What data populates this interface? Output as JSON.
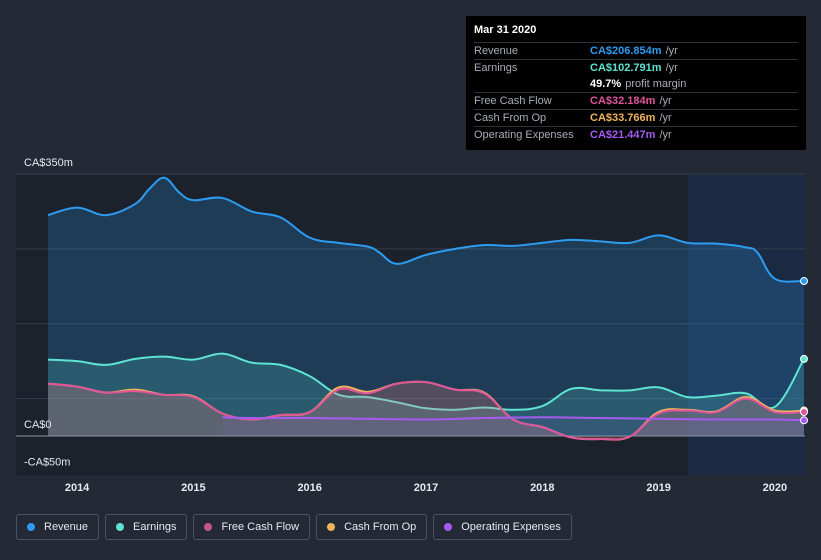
{
  "tooltip": {
    "date": "Mar 31 2020",
    "rows": [
      {
        "label": "Revenue",
        "value": "CA$206.854m",
        "unit": "/yr",
        "color": "#2d9cf0"
      },
      {
        "label": "Earnings",
        "value": "CA$102.791m",
        "unit": "/yr",
        "color": "#5fe3d2"
      },
      {
        "label": "",
        "value": "49.7%",
        "unit": "profit margin",
        "color": "#ffffff"
      },
      {
        "label": "Free Cash Flow",
        "value": "CA$32.184m",
        "unit": "/yr",
        "color": "#e0559a"
      },
      {
        "label": "Cash From Op",
        "value": "CA$33.766m",
        "unit": "/yr",
        "color": "#f0b45c"
      },
      {
        "label": "Operating Expenses",
        "value": "CA$21.447m",
        "unit": "/yr",
        "color": "#a55bef"
      }
    ]
  },
  "chart_data": {
    "type": "area",
    "y_axis_labels": [
      "CA$350m",
      "CA$0",
      "-CA$50m"
    ],
    "ylim": [
      -50,
      350
    ],
    "xlim": [
      2013.75,
      2020.25
    ],
    "x_ticks": [
      "2014",
      "2015",
      "2016",
      "2017",
      "2018",
      "2019",
      "2020"
    ],
    "forecast_start": 2019.25,
    "series": [
      {
        "name": "Revenue",
        "color": "#2d9cf0",
        "fill_from": null,
        "x": [
          2013.75,
          2014.0,
          2014.25,
          2014.5,
          2014.62,
          2014.75,
          2014.88,
          2015.0,
          2015.25,
          2015.5,
          2015.75,
          2016.0,
          2016.25,
          2016.5,
          2016.6,
          2016.75,
          2017.0,
          2017.25,
          2017.5,
          2017.75,
          2018.0,
          2018.25,
          2018.5,
          2018.75,
          2019.0,
          2019.25,
          2019.5,
          2019.75,
          2019.85,
          2020.0,
          2020.25
        ],
        "y": [
          295,
          305,
          295,
          310,
          330,
          345,
          325,
          315,
          318,
          300,
          292,
          265,
          258,
          253,
          245,
          230,
          242,
          250,
          255,
          254,
          258,
          262,
          260,
          258,
          268,
          258,
          257,
          252,
          245,
          210,
          207
        ]
      },
      {
        "name": "Earnings",
        "color": "#5fe3d2",
        "fill_from": null,
        "x": [
          2013.75,
          2014.0,
          2014.25,
          2014.5,
          2014.75,
          2015.0,
          2015.25,
          2015.5,
          2015.75,
          2016.0,
          2016.25,
          2016.5,
          2016.75,
          2017.0,
          2017.25,
          2017.5,
          2017.75,
          2018.0,
          2018.25,
          2018.5,
          2018.75,
          2019.0,
          2019.25,
          2019.5,
          2019.75,
          2020.0,
          2020.25
        ],
        "y": [
          102,
          100,
          95,
          103,
          106,
          102,
          110,
          98,
          95,
          80,
          55,
          52,
          45,
          37,
          35,
          38,
          35,
          40,
          63,
          61,
          61,
          65,
          52,
          54,
          57,
          39,
          103
        ]
      },
      {
        "name": "Free Cash Flow",
        "color": "#e0559a",
        "fill_from": null,
        "x": [
          2013.75,
          2014.0,
          2014.25,
          2014.5,
          2014.75,
          2015.0,
          2015.25,
          2015.5,
          2015.75,
          2016.0,
          2016.25,
          2016.5,
          2016.75,
          2017.0,
          2017.25,
          2017.5,
          2017.75,
          2018.0,
          2018.25,
          2018.5,
          2018.75,
          2019.0,
          2019.25,
          2019.5,
          2019.75,
          2020.0,
          2020.25
        ],
        "y": [
          70,
          66,
          58,
          60,
          55,
          52,
          30,
          22,
          28,
          32,
          62,
          57,
          70,
          72,
          62,
          57,
          22,
          12,
          -2,
          -4,
          -1,
          30,
          34,
          32,
          50,
          32,
          32
        ]
      },
      {
        "name": "Cash From Op",
        "color": "#f0b45c",
        "fill_from": null,
        "x": [
          2013.75,
          2014.0,
          2014.25,
          2014.5,
          2014.75,
          2015.0,
          2015.25,
          2015.5,
          2015.75,
          2016.0,
          2016.25,
          2016.5,
          2016.75,
          2017.0,
          2017.25,
          2017.5,
          2017.75,
          2018.0,
          2018.25,
          2018.5,
          2018.75,
          2019.0,
          2019.25,
          2019.5,
          2019.75,
          2020.0,
          2020.25
        ],
        "y": [
          70,
          66,
          58,
          62,
          55,
          53,
          30,
          22,
          28,
          32,
          65,
          59,
          70,
          72,
          62,
          58,
          22,
          12,
          -2,
          -4,
          -1,
          32,
          35,
          33,
          52,
          34,
          34
        ]
      },
      {
        "name": "Operating Expenses",
        "color": "#a55bef",
        "fill_from": null,
        "x": [
          2015.25,
          2015.5,
          2015.75,
          2016.0,
          2016.5,
          2017.0,
          2017.5,
          2018.0,
          2018.5,
          2019.0,
          2019.5,
          2020.0,
          2020.25
        ],
        "y": [
          25,
          24,
          24,
          24,
          23,
          22,
          24,
          25,
          24,
          23,
          22,
          22,
          21
        ]
      }
    ]
  },
  "legend": [
    {
      "label": "Revenue",
      "color": "#2d9cf0"
    },
    {
      "label": "Earnings",
      "color": "#5fe3d2"
    },
    {
      "label": "Free Cash Flow",
      "color": "#c2578b"
    },
    {
      "label": "Cash From Op",
      "color": "#f0b45c"
    },
    {
      "label": "Operating Expenses",
      "color": "#a55bef"
    }
  ]
}
